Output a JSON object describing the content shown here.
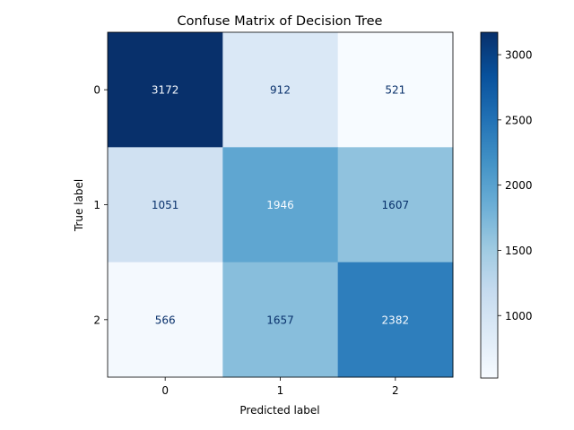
{
  "chart_data": {
    "type": "heatmap",
    "title": "Confuse Matrix of Decision Tree",
    "xlabel": "Predicted label",
    "ylabel": "True label",
    "x_categories": [
      "0",
      "1",
      "2"
    ],
    "y_categories": [
      "0",
      "1",
      "2"
    ],
    "matrix": [
      [
        3172,
        912,
        521
      ],
      [
        1051,
        1946,
        1607
      ],
      [
        566,
        1657,
        2382
      ]
    ],
    "colormap": "Blues",
    "value_range": [
      521,
      3172
    ],
    "colorbar": {
      "ticks": [
        1000,
        1500,
        2000,
        2500,
        3000
      ],
      "tick_labels": [
        "1000",
        "1500",
        "2000",
        "2500",
        "3000"
      ]
    }
  }
}
